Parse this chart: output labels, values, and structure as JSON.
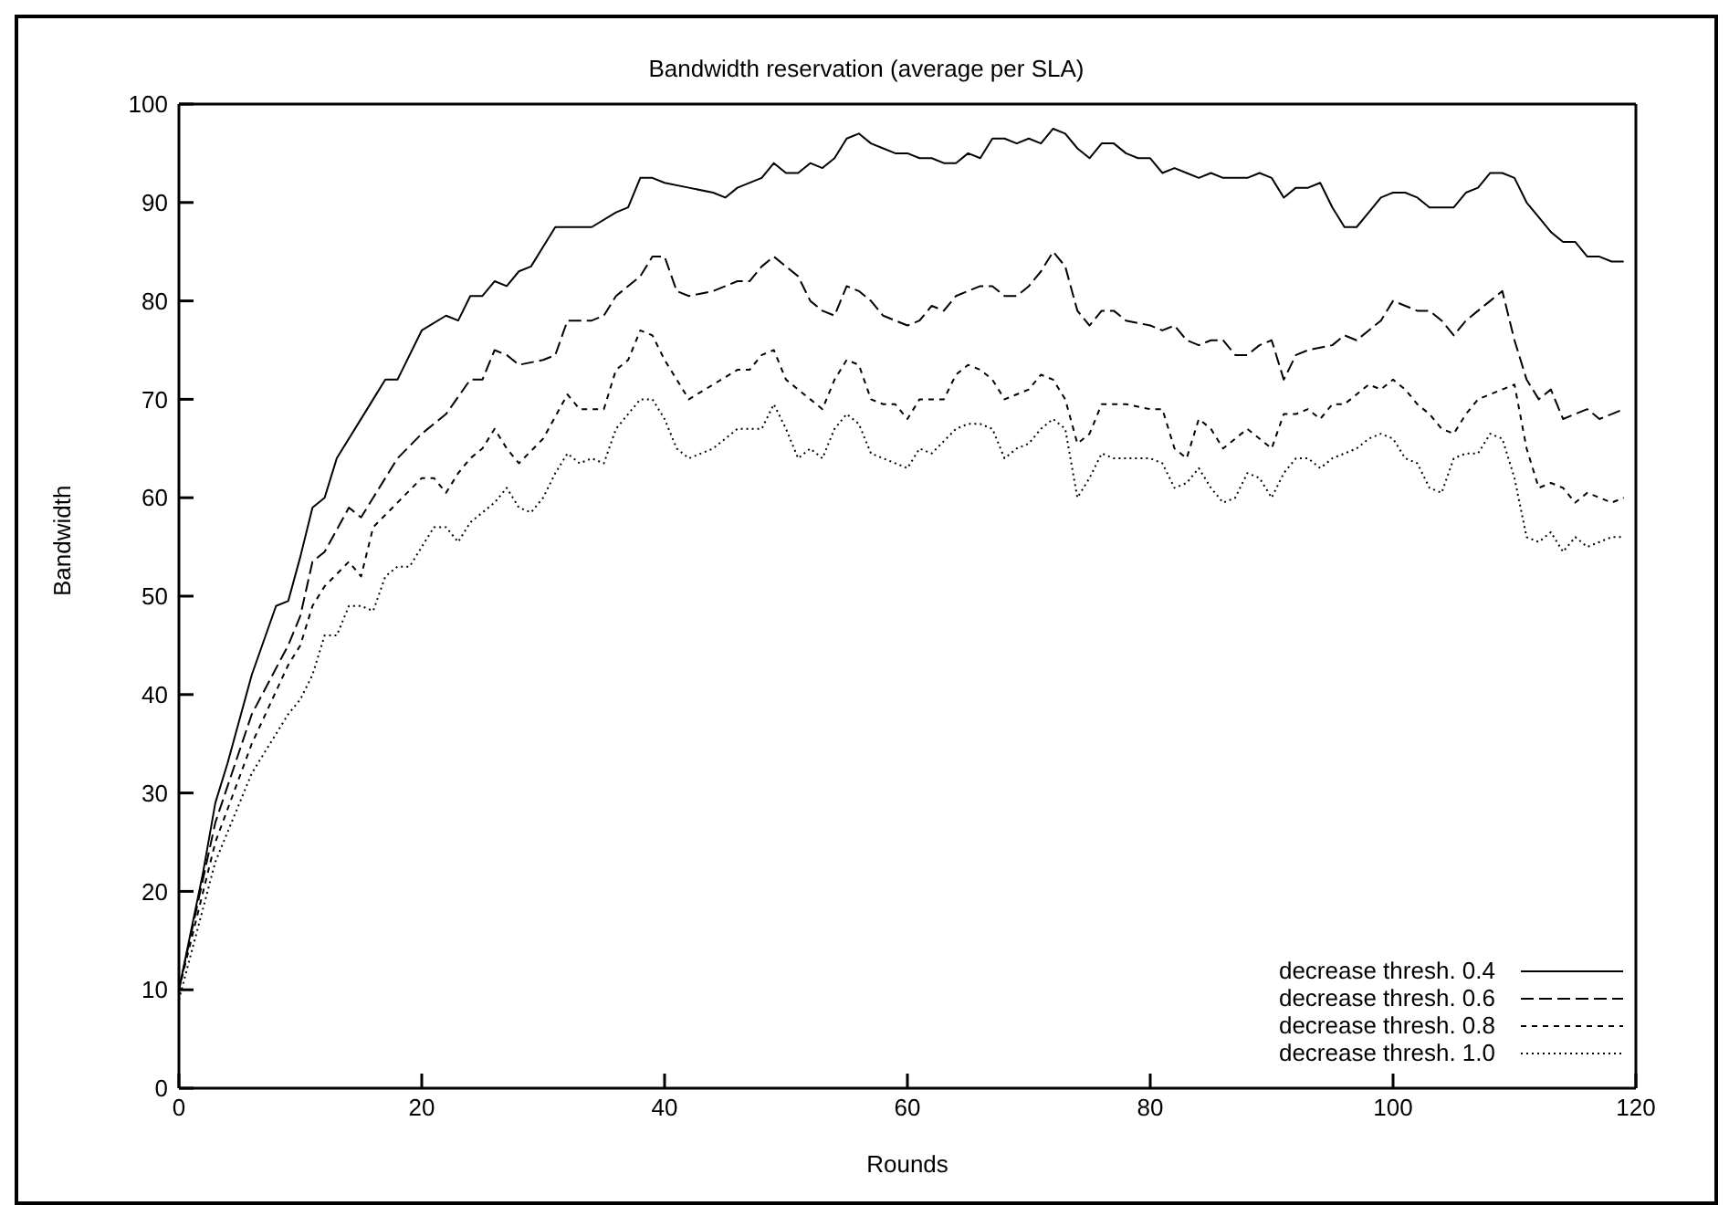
{
  "chart_data": {
    "type": "line",
    "title": "Bandwidth reservation (average per SLA)",
    "xlabel": "Rounds",
    "ylabel": "Bandwidth",
    "xlim": [
      0,
      120
    ],
    "xticks": [
      0,
      20,
      40,
      60,
      80,
      100,
      120
    ],
    "ylim": [
      0,
      100
    ],
    "yticks": [
      0,
      10,
      20,
      30,
      40,
      50,
      60,
      70,
      80,
      90,
      100
    ],
    "grid": false,
    "legend": "bottom right",
    "marker": "none",
    "series": [
      {
        "name": "decrease thresh. 0.4",
        "color": "#000000",
        "line_style": "solid",
        "x": [
          0,
          2,
          3,
          4,
          6,
          8,
          9,
          10,
          11,
          12,
          13,
          16,
          17,
          18,
          20,
          22,
          23,
          24,
          25,
          26,
          27,
          28,
          29,
          30,
          31,
          33,
          34,
          36,
          37,
          38,
          39,
          40,
          42,
          44,
          45,
          46,
          48,
          49,
          50,
          51,
          52,
          53,
          54,
          55,
          56,
          57,
          58,
          59,
          60,
          61,
          62,
          63,
          64,
          65,
          66,
          67,
          68,
          69,
          70,
          71,
          72,
          73,
          74,
          75,
          76,
          77,
          78,
          79,
          80,
          81,
          82,
          83,
          84,
          85,
          86,
          87,
          88,
          89,
          90,
          91,
          92,
          93,
          94,
          95,
          96,
          97,
          98,
          99,
          100,
          101,
          102,
          103,
          104,
          105,
          106,
          107,
          108,
          109,
          110,
          111,
          112,
          113,
          114,
          115,
          116,
          117,
          118,
          119
        ],
        "values": [
          10,
          22,
          29,
          33,
          42,
          49,
          49.5,
          54,
          59,
          60,
          64,
          70,
          72,
          72,
          77,
          78.5,
          78,
          80.5,
          80.5,
          82,
          81.5,
          83,
          83.5,
          85.5,
          87.5,
          87.5,
          87.5,
          89,
          89.5,
          92.5,
          92.5,
          92,
          91.5,
          91,
          90.5,
          91.5,
          92.5,
          94,
          93,
          93,
          94,
          93.5,
          94.5,
          96.5,
          97,
          96,
          95.5,
          95,
          95,
          94.5,
          94.5,
          94,
          94,
          95,
          94.5,
          96.5,
          96.5,
          96,
          96.5,
          96,
          97.5,
          97,
          95.5,
          94.5,
          96,
          96,
          95,
          94.5,
          94.5,
          93,
          93.5,
          93,
          92.5,
          93,
          92.5,
          92.5,
          92.5,
          93,
          92.5,
          90.5,
          91.5,
          91.5,
          92,
          89.5,
          87.5,
          87.5,
          89,
          90.5,
          91,
          91,
          90.5,
          89.5,
          89.5,
          89.5,
          91,
          91.5,
          93,
          93,
          92.5,
          90,
          88.5,
          87,
          86,
          86,
          84.5,
          84.5,
          84,
          84
        ]
      },
      {
        "name": "decrease thresh. 0.6",
        "color": "#000000",
        "line_style": "dashed",
        "x": [
          0,
          3,
          6,
          9,
          10,
          11,
          12,
          14,
          15,
          16,
          18,
          20,
          22,
          24,
          25,
          26,
          27,
          28,
          30,
          31,
          32,
          34,
          35,
          36,
          38,
          39,
          40,
          41,
          42,
          44,
          46,
          47,
          48,
          49,
          50,
          51,
          52,
          53,
          54,
          55,
          56,
          57,
          58,
          60,
          61,
          62,
          63,
          64,
          66,
          67,
          68,
          69,
          70,
          71,
          72,
          73,
          74,
          75,
          76,
          77,
          78,
          80,
          81,
          82,
          83,
          84,
          85,
          86,
          87,
          88,
          89,
          90,
          91,
          92,
          93,
          95,
          96,
          97,
          98,
          99,
          100,
          101,
          102,
          103,
          104,
          105,
          106,
          107,
          108,
          109,
          110,
          111,
          112,
          113,
          114,
          115,
          116,
          117,
          118,
          119
        ],
        "values": [
          10,
          27,
          38,
          45,
          48,
          53.5,
          54.5,
          59,
          58,
          60,
          64,
          66.5,
          68.5,
          72,
          72,
          75,
          74.5,
          73.5,
          74,
          74.5,
          78,
          78,
          78.5,
          80.5,
          82.5,
          84.5,
          84.5,
          81,
          80.5,
          81,
          82,
          82,
          83.5,
          84.5,
          83.5,
          82.5,
          80,
          79,
          78.5,
          81.5,
          81,
          80,
          78.5,
          77.5,
          78,
          79.5,
          79,
          80.5,
          81.5,
          81.5,
          80.5,
          80.5,
          81.5,
          83,
          85,
          83.5,
          79,
          77.5,
          79,
          79,
          78,
          77.5,
          77,
          77.5,
          76,
          75.5,
          76,
          76,
          74.5,
          74.5,
          75.5,
          76,
          72,
          74.5,
          75,
          75.5,
          76.5,
          76,
          77,
          78,
          80,
          79.5,
          79,
          79,
          78,
          76.5,
          78,
          79,
          80,
          81,
          76,
          72,
          70,
          71,
          68,
          68.5,
          69,
          68,
          68.5,
          69
        ]
      },
      {
        "name": "decrease thresh. 0.8",
        "color": "#000000",
        "line_style": "dashed_fine",
        "x": [
          0,
          3,
          6,
          9,
          10,
          11,
          12,
          14,
          15,
          16,
          18,
          20,
          21,
          22,
          23,
          24,
          25,
          26,
          27,
          28,
          30,
          32,
          33,
          34,
          35,
          36,
          37,
          38,
          39,
          40,
          41,
          42,
          44,
          46,
          47,
          48,
          49,
          50,
          51,
          52,
          53,
          54,
          55,
          56,
          57,
          58,
          59,
          60,
          61,
          62,
          63,
          64,
          65,
          66,
          67,
          68,
          69,
          70,
          71,
          72,
          73,
          74,
          75,
          76,
          78,
          80,
          81,
          82,
          83,
          84,
          85,
          86,
          87,
          88,
          89,
          90,
          91,
          92,
          93,
          94,
          95,
          96,
          97,
          98,
          99,
          100,
          101,
          102,
          103,
          104,
          105,
          106,
          107,
          108,
          109,
          110,
          111,
          112,
          113,
          114,
          115,
          116,
          117,
          118,
          119
        ],
        "values": [
          10,
          25,
          35,
          43,
          45,
          49,
          51,
          53.5,
          52,
          57,
          59.5,
          62,
          62,
          60.5,
          62.5,
          64,
          65,
          67,
          65,
          63.5,
          66,
          70.5,
          69,
          69,
          69,
          73,
          74,
          77,
          76.5,
          74,
          72,
          70,
          71.5,
          73,
          73,
          74.5,
          75,
          72,
          71,
          70,
          69,
          72,
          74,
          73.5,
          70,
          69.5,
          69.5,
          68,
          70,
          70,
          70,
          72.5,
          73.5,
          73,
          72,
          70,
          70.5,
          71,
          72.5,
          72,
          70,
          65.5,
          66.5,
          69.5,
          69.5,
          69,
          69,
          65,
          64,
          68,
          67,
          65,
          66,
          67,
          66,
          65,
          68.5,
          68.5,
          69,
          68,
          69.5,
          69.5,
          70.5,
          71.5,
          71,
          72,
          71,
          69.5,
          68.5,
          67,
          66.5,
          68.5,
          70,
          70.5,
          71,
          71.5,
          65,
          61,
          61.5,
          61,
          59.5,
          60.5,
          60,
          59.5,
          60
        ]
      },
      {
        "name": "decrease thresh. 1.0",
        "color": "#000000",
        "line_style": "dotted",
        "x": [
          0,
          3,
          6,
          9,
          10,
          11,
          12,
          13,
          14,
          15,
          16,
          17,
          18,
          19,
          20,
          21,
          22,
          23,
          24,
          25,
          26,
          27,
          28,
          29,
          30,
          31,
          32,
          33,
          34,
          35,
          36,
          37,
          38,
          39,
          40,
          41,
          42,
          44,
          46,
          48,
          49,
          50,
          51,
          52,
          53,
          54,
          55,
          56,
          57,
          58,
          60,
          61,
          62,
          64,
          65,
          66,
          67,
          68,
          69,
          70,
          71,
          72,
          73,
          74,
          75,
          76,
          77,
          78,
          80,
          81,
          82,
          83,
          84,
          85,
          86,
          87,
          88,
          89,
          90,
          91,
          92,
          93,
          94,
          95,
          96,
          97,
          98,
          99,
          100,
          101,
          102,
          103,
          104,
          105,
          106,
          107,
          108,
          109,
          110,
          111,
          112,
          113,
          114,
          115,
          116,
          117,
          118,
          119
        ],
        "values": [
          9,
          23,
          32,
          38,
          39.5,
          42,
          46,
          46,
          49,
          49,
          48.5,
          52,
          53,
          53,
          55,
          57,
          57,
          55.5,
          57.5,
          58.5,
          59.5,
          61,
          59,
          58.5,
          60,
          62.5,
          64.5,
          63.5,
          64,
          63.5,
          67,
          68.5,
          70,
          70,
          68,
          65,
          64,
          65,
          67,
          67,
          69.5,
          67,
          64,
          65,
          64,
          67,
          68.5,
          67.5,
          64.5,
          64,
          63,
          65,
          64.5,
          67,
          67.5,
          67.5,
          67,
          64,
          65,
          65.5,
          67,
          68,
          67,
          60,
          62,
          64.5,
          64,
          64,
          64,
          63.5,
          61,
          61.5,
          63,
          61,
          59.5,
          60,
          62.5,
          62,
          60,
          62.5,
          64,
          64,
          63,
          64,
          64.5,
          65,
          66,
          66.5,
          66,
          64,
          63.5,
          61,
          60.5,
          64,
          64.5,
          64.5,
          66.5,
          66,
          62,
          56,
          55.5,
          56.5,
          54.5,
          56,
          55,
          55.5,
          56,
          56
        ]
      }
    ]
  }
}
